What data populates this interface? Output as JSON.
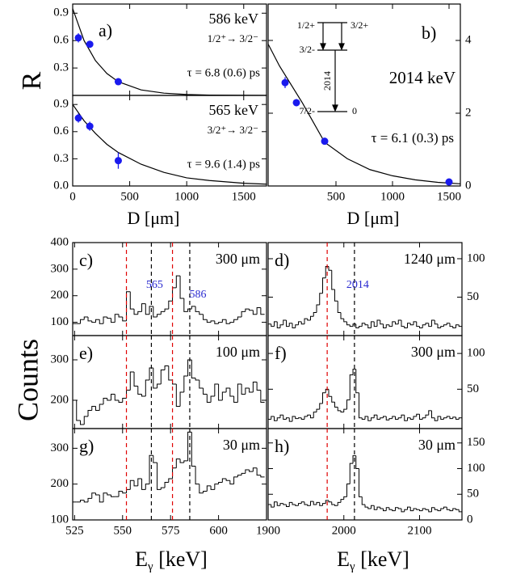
{
  "chart_data": [
    {
      "type": "scatter",
      "panel_label": "a)",
      "title": "586 keV",
      "subtitle": "1/2⁺→ 3/2⁻",
      "annotation": "τ = 6.8 (0.6) ps",
      "x": [
        50,
        150,
        400
      ],
      "values": [
        0.63,
        0.56,
        0.15
      ],
      "errors": [
        0.05,
        0.03,
        0.03
      ],
      "fit": {
        "x": [
          0,
          100,
          200,
          300,
          400,
          600,
          800,
          1000,
          1200,
          1500,
          1700
        ],
        "values": [
          0.95,
          0.6,
          0.38,
          0.24,
          0.15,
          0.06,
          0.025,
          0.01,
          0.004,
          0.001,
          0
        ]
      },
      "xlim": [
        0,
        1700
      ],
      "ylim": [
        0,
        1.0
      ],
      "xticks": [
        0,
        500,
        1000,
        1500
      ],
      "yticks": [
        0.3,
        0.6,
        0.9
      ],
      "color": "#1a1aee"
    },
    {
      "type": "scatter",
      "title": "565 keV",
      "subtitle": "3/2⁺→ 3/2⁻",
      "annotation": "τ = 9.6 (1.4) ps",
      "x": [
        50,
        150,
        400
      ],
      "values": [
        0.75,
        0.66,
        0.28
      ],
      "errors": [
        0.05,
        0.05,
        0.09
      ],
      "fit": {
        "x": [
          0,
          100,
          200,
          300,
          400,
          600,
          800,
          1000,
          1200,
          1500,
          1700
        ],
        "values": [
          0.9,
          0.72,
          0.58,
          0.46,
          0.37,
          0.24,
          0.15,
          0.09,
          0.06,
          0.03,
          0.02
        ]
      },
      "xlim": [
        0,
        1700
      ],
      "ylim": [
        0,
        1.0
      ],
      "xticks": [
        0,
        500,
        1000,
        1500
      ],
      "yticks": [
        {
          "value": 0,
          "label": "0.0"
        },
        0.3,
        0.6,
        0.9
      ],
      "color": "#1a1aee"
    },
    {
      "type": "scatter",
      "panel_label": "b)",
      "title": "2014 keV",
      "annotation": "τ = 6.1 (0.3) ps",
      "x": [
        50,
        150,
        400,
        1500
      ],
      "values": [
        2.84,
        2.29,
        1.23,
        0.11
      ],
      "errors": [
        0.15,
        0.1,
        0.08,
        0.05
      ],
      "fit": {
        "x": [
          -100,
          0,
          200,
          400,
          600,
          800,
          1000,
          1200,
          1400,
          1600
        ],
        "values": [
          3.9,
          3.3,
          2.3,
          1.2,
          0.75,
          0.45,
          0.28,
          0.17,
          0.1,
          0.06
        ]
      },
      "xlim": [
        -100,
        1600
      ],
      "ylim": [
        0,
        5
      ],
      "xticks": [
        500,
        1000,
        1500
      ],
      "yticks": [
        0,
        2,
        4
      ],
      "color": "#1a1aee",
      "level_scheme": {
        "upper_left": "1/2+",
        "upper_right": "3/2+",
        "middle": "3/2-",
        "ground": "7/2-",
        "ground_energy": "0",
        "transition": "2014"
      }
    },
    {
      "type": "histogram",
      "panel_label": "c)",
      "title": "300 μm",
      "bins": [
        524,
        526,
        528,
        530,
        532,
        534,
        536,
        538,
        540,
        542,
        544,
        546,
        548,
        550,
        552,
        554,
        556,
        558,
        560,
        562,
        564,
        566,
        568,
        570,
        572,
        574,
        576,
        578,
        580,
        582,
        584,
        586,
        588,
        590,
        592,
        594,
        596,
        598,
        600,
        602,
        604,
        606,
        608,
        610,
        612,
        614,
        616,
        618,
        620,
        622,
        624
      ],
      "counts": [
        95,
        95,
        110,
        120,
        105,
        100,
        110,
        95,
        120,
        115,
        100,
        130,
        120,
        105,
        215,
        150,
        130,
        140,
        170,
        130,
        160,
        120,
        130,
        140,
        150,
        180,
        230,
        275,
        190,
        140,
        150,
        160,
        140,
        130,
        110,
        100,
        105,
        95,
        100,
        110,
        95,
        100,
        110,
        120,
        140,
        150,
        145,
        130,
        155,
        130
      ],
      "vlines": [
        {
          "x": 552,
          "color": "#e00000"
        },
        {
          "x": 565,
          "color": "#000000",
          "label": "565"
        },
        {
          "x": 576,
          "color": "#e00000"
        },
        {
          "x": 585,
          "color": "#000000",
          "label": "586"
        }
      ],
      "xlim": [
        524,
        625
      ],
      "ylim": [
        50,
        400
      ],
      "xticks": [
        525,
        550,
        575,
        600
      ],
      "yticks": [
        100,
        200,
        300,
        400
      ]
    },
    {
      "type": "histogram",
      "panel_label": "d)",
      "title": "1240 μm",
      "bins": [
        1900,
        1904,
        1908,
        1912,
        1916,
        1920,
        1924,
        1928,
        1932,
        1936,
        1940,
        1944,
        1948,
        1952,
        1956,
        1960,
        1964,
        1968,
        1972,
        1976,
        1980,
        1984,
        1988,
        1992,
        1996,
        2000,
        2004,
        2008,
        2012,
        2016,
        2020,
        2024,
        2028,
        2032,
        2036,
        2040,
        2044,
        2048,
        2052,
        2056,
        2060,
        2064,
        2068,
        2072,
        2076,
        2080,
        2084,
        2088,
        2092,
        2096,
        2100,
        2104,
        2108,
        2112,
        2116,
        2120,
        2124,
        2128,
        2132,
        2136,
        2140,
        2144,
        2148,
        2152,
        2156
      ],
      "counts": [
        15,
        12,
        18,
        10,
        14,
        20,
        12,
        16,
        10,
        14,
        18,
        15,
        22,
        20,
        25,
        30,
        40,
        55,
        75,
        90,
        85,
        60,
        45,
        30,
        22,
        18,
        14,
        12,
        15,
        10,
        12,
        16,
        14,
        10,
        18,
        12,
        20,
        15,
        10,
        14,
        12,
        18,
        15,
        20,
        12,
        10,
        16,
        14,
        18,
        12,
        10,
        14,
        16,
        12,
        20,
        15,
        10,
        12,
        14,
        16,
        12,
        10,
        14,
        12
      ],
      "vlines": [
        {
          "x": 1978,
          "color": "#e00000"
        },
        {
          "x": 2014,
          "color": "#000000",
          "label": "2014"
        }
      ],
      "xlim": [
        1900,
        2156
      ],
      "ylim": [
        0,
        121
      ],
      "xticks": [
        1900,
        2000,
        2100
      ],
      "yticks": [
        50,
        100
      ]
    },
    {
      "type": "histogram",
      "panel_label": "e)",
      "title": "100 μm",
      "bins": [
        524,
        526,
        528,
        530,
        532,
        534,
        536,
        538,
        540,
        542,
        544,
        546,
        548,
        550,
        552,
        554,
        556,
        558,
        560,
        562,
        564,
        566,
        568,
        570,
        572,
        574,
        576,
        578,
        580,
        582,
        584,
        586,
        588,
        590,
        592,
        594,
        596,
        598,
        600,
        602,
        604,
        606,
        608,
        610,
        612,
        614,
        616,
        618,
        620,
        622,
        624
      ],
      "counts": [
        200,
        150,
        140,
        160,
        175,
        185,
        175,
        190,
        205,
        200,
        215,
        200,
        195,
        205,
        225,
        270,
        235,
        215,
        210,
        250,
        280,
        230,
        240,
        275,
        285,
        250,
        240,
        185,
        220,
        260,
        300,
        255,
        250,
        230,
        215,
        195,
        210,
        240,
        200,
        220,
        230,
        210,
        195,
        240,
        215,
        230,
        220,
        245,
        225,
        195
      ],
      "vlines": [
        {
          "x": 552,
          "color": "#e00000"
        },
        {
          "x": 565,
          "color": "#000000"
        },
        {
          "x": 576,
          "color": "#e00000"
        },
        {
          "x": 585,
          "color": "#000000"
        }
      ],
      "xlim": [
        524,
        625
      ],
      "ylim": [
        130,
        360
      ],
      "xticks": [
        525,
        550,
        575,
        600
      ],
      "yticks": [
        200,
        300
      ]
    },
    {
      "type": "histogram",
      "panel_label": "f)",
      "title": "300 μm",
      "bins": [
        1900,
        1904,
        1908,
        1912,
        1916,
        1920,
        1924,
        1928,
        1932,
        1936,
        1940,
        1944,
        1948,
        1952,
        1956,
        1960,
        1964,
        1968,
        1972,
        1976,
        1980,
        1984,
        1988,
        1992,
        1996,
        2000,
        2004,
        2008,
        2012,
        2016,
        2020,
        2024,
        2028,
        2032,
        2036,
        2040,
        2044,
        2048,
        2052,
        2056,
        2060,
        2064,
        2068,
        2072,
        2076,
        2080,
        2084,
        2088,
        2092,
        2096,
        2100,
        2104,
        2108,
        2112,
        2116,
        2120,
        2124,
        2128,
        2132,
        2136,
        2140,
        2144,
        2148,
        2152,
        2156
      ],
      "counts": [
        8,
        12,
        6,
        10,
        14,
        8,
        10,
        5,
        12,
        9,
        10,
        8,
        12,
        14,
        10,
        18,
        22,
        30,
        45,
        50,
        40,
        32,
        25,
        20,
        18,
        22,
        35,
        70,
        78,
        45,
        10,
        8,
        12,
        6,
        10,
        14,
        8,
        10,
        12,
        7,
        9,
        12,
        8,
        10,
        14,
        6,
        10,
        8,
        12,
        15,
        8,
        10,
        14,
        20,
        10,
        6,
        12,
        8,
        10,
        12,
        9,
        11,
        8,
        10
      ],
      "vlines": [
        {
          "x": 1978,
          "color": "#e00000"
        },
        {
          "x": 2014,
          "color": "#000000"
        }
      ],
      "xlim": [
        1900,
        2156
      ],
      "ylim": [
        -5,
        125
      ],
      "xticks": [
        1900,
        2000,
        2100
      ],
      "yticks": [
        50,
        100
      ]
    },
    {
      "type": "histogram",
      "panel_label": "g)",
      "title": "30 μm",
      "bins": [
        524,
        526,
        528,
        530,
        532,
        534,
        536,
        538,
        540,
        542,
        544,
        546,
        548,
        550,
        552,
        554,
        556,
        558,
        560,
        562,
        564,
        566,
        568,
        570,
        572,
        574,
        576,
        578,
        580,
        582,
        584,
        586,
        588,
        590,
        592,
        594,
        596,
        598,
        600,
        602,
        604,
        606,
        608,
        610,
        612,
        614,
        616,
        618,
        620,
        622,
        624
      ],
      "counts": [
        150,
        150,
        155,
        150,
        160,
        175,
        170,
        150,
        175,
        170,
        165,
        165,
        180,
        175,
        185,
        210,
        195,
        215,
        185,
        200,
        280,
        260,
        185,
        190,
        205,
        215,
        245,
        270,
        260,
        265,
        345,
        250,
        200,
        175,
        180,
        195,
        185,
        200,
        205,
        215,
        210,
        200,
        220,
        225,
        230,
        240,
        235,
        245,
        225,
        220
      ],
      "vlines": [
        {
          "x": 552,
          "color": "#e00000"
        },
        {
          "x": 565,
          "color": "#000000"
        },
        {
          "x": 576,
          "color": "#e00000"
        },
        {
          "x": 585,
          "color": "#000000"
        }
      ],
      "xlim": [
        524,
        625
      ],
      "ylim": [
        100,
        355
      ],
      "xticks": [
        525,
        550,
        575,
        600
      ],
      "yticks": [
        100,
        200,
        300
      ]
    },
    {
      "type": "histogram",
      "panel_label": "h)",
      "title": "30 μm",
      "bins": [
        1900,
        1904,
        1908,
        1912,
        1916,
        1920,
        1924,
        1928,
        1932,
        1936,
        1940,
        1944,
        1948,
        1952,
        1956,
        1960,
        1964,
        1968,
        1972,
        1976,
        1980,
        1984,
        1988,
        1992,
        1996,
        2000,
        2004,
        2008,
        2012,
        2016,
        2020,
        2024,
        2028,
        2032,
        2036,
        2040,
        2044,
        2048,
        2052,
        2056,
        2060,
        2064,
        2068,
        2072,
        2076,
        2080,
        2084,
        2088,
        2092,
        2096,
        2100,
        2104,
        2108,
        2112,
        2116,
        2120,
        2124,
        2128,
        2132,
        2136,
        2140,
        2144,
        2148,
        2152,
        2156
      ],
      "counts": [
        30,
        25,
        35,
        28,
        32,
        30,
        26,
        34,
        30,
        28,
        32,
        35,
        30,
        28,
        36,
        30,
        34,
        28,
        32,
        38,
        35,
        30,
        28,
        34,
        40,
        45,
        70,
        110,
        125,
        100,
        45,
        30,
        25,
        22,
        28,
        20,
        25,
        22,
        18,
        24,
        20,
        18,
        24,
        22,
        16,
        20,
        25,
        18,
        22,
        20,
        18,
        22,
        20,
        16,
        24,
        20,
        18,
        22,
        25,
        20,
        18,
        22,
        20,
        16
      ],
      "vlines": [
        {
          "x": 1978,
          "color": "#e00000"
        },
        {
          "x": 2014,
          "color": "#000000"
        }
      ],
      "xlim": [
        1900,
        2156
      ],
      "ylim": [
        0,
        178
      ],
      "xticks": [
        1900,
        2000,
        2100
      ],
      "yticks": [
        0,
        50,
        100,
        150
      ]
    }
  ],
  "axis_titles": {
    "r": "R",
    "d_left": "D [μm]",
    "d_right": "D [μm]",
    "counts": "Counts",
    "energy_left": {
      "symbol": "E",
      "sub": "γ",
      "unit": " [keV]"
    },
    "energy_right": {
      "symbol": "E",
      "sub": "γ",
      "unit": " [keV]"
    }
  }
}
